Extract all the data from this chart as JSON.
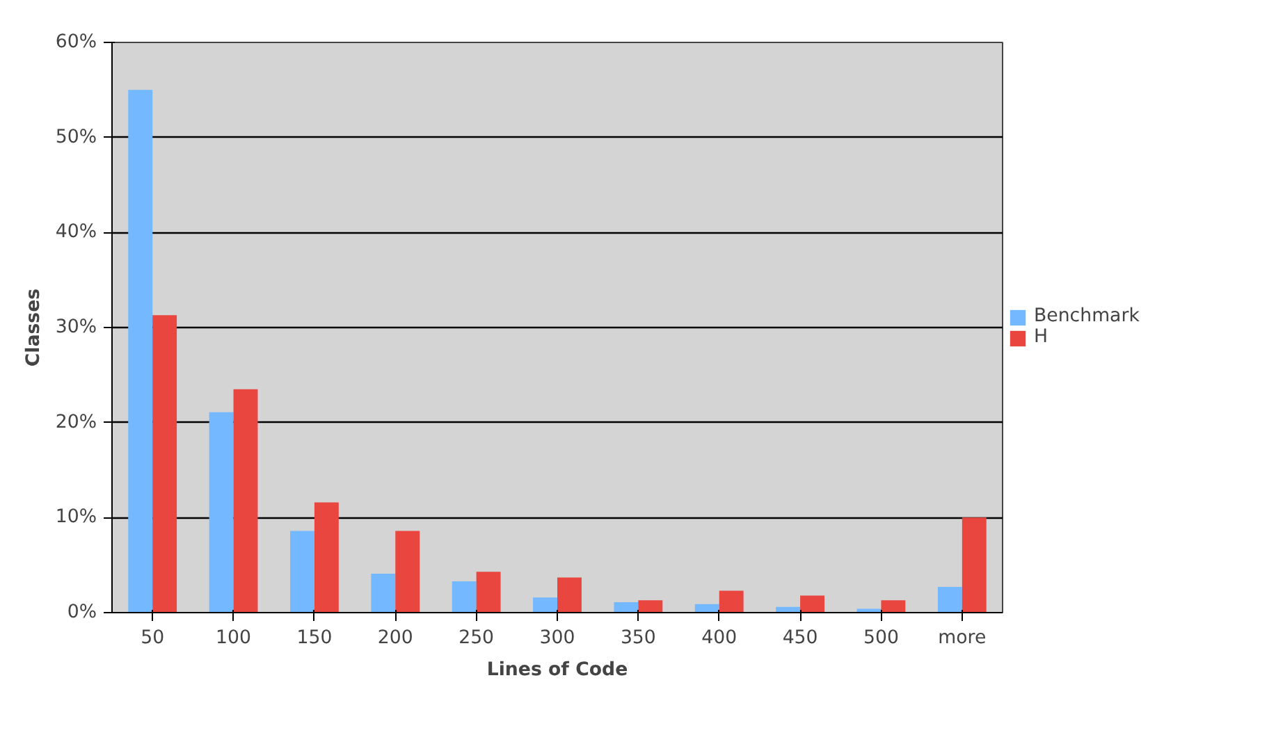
{
  "chart_data": {
    "type": "bar",
    "xlabel": "Lines of Code",
    "ylabel": "Classes",
    "categories": [
      "50",
      "100",
      "150",
      "200",
      "250",
      "300",
      "350",
      "400",
      "450",
      "500",
      "more"
    ],
    "series": [
      {
        "name": "Benchmark",
        "color": "#74b9ff",
        "values": [
          55,
          21.1,
          8.6,
          4.1,
          3.3,
          1.6,
          1.1,
          0.9,
          0.6,
          0.4,
          2.7
        ]
      },
      {
        "name": "H",
        "color": "#e8463f",
        "values": [
          31.3,
          23.5,
          11.6,
          8.6,
          4.3,
          3.7,
          1.3,
          2.3,
          1.8,
          1.3,
          10.0
        ]
      }
    ],
    "ylim": [
      0,
      60
    ],
    "yticks": [
      {
        "value": 0,
        "label": "0%"
      },
      {
        "value": 10,
        "label": "10%"
      },
      {
        "value": 20,
        "label": "20%"
      },
      {
        "value": 30,
        "label": "30%"
      },
      {
        "value": 40,
        "label": "40%"
      },
      {
        "value": 50,
        "label": "50%"
      },
      {
        "value": 60,
        "label": "60%"
      }
    ],
    "grid": "y",
    "legend": "right"
  }
}
